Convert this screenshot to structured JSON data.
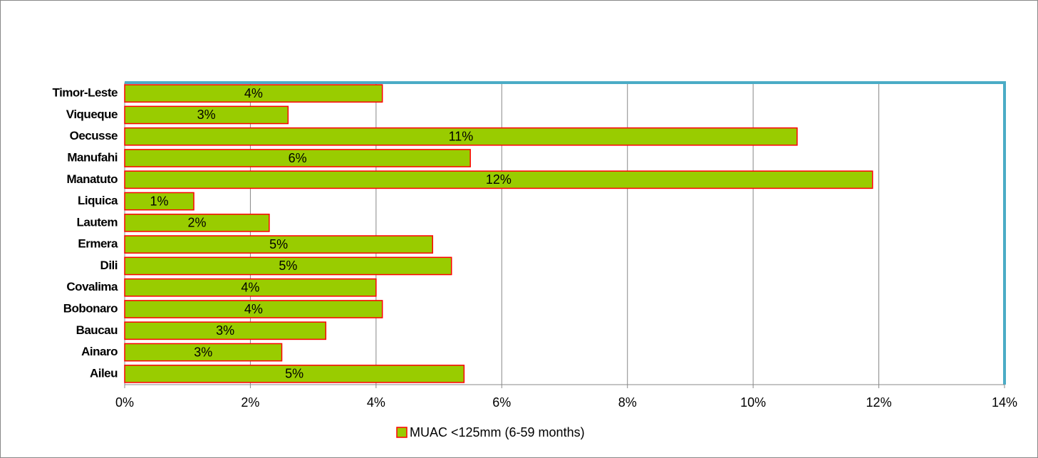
{
  "chart_data": {
    "type": "barh",
    "categories": [
      "Timor-Leste",
      "Viqueque",
      "Oecusse",
      "Manufahi",
      "Manatuto",
      "Liquica",
      "Lautem",
      "Ermera",
      "Dili",
      "Covalima",
      "Bobonaro",
      "Baucau",
      "Ainaro",
      "Aileu"
    ],
    "series": [
      {
        "name": "MUAC <125mm (6-59 months)",
        "color": "#99cc00",
        "border_color": "#ff0000",
        "values": [
          4.1,
          2.6,
          10.7,
          5.5,
          11.9,
          1.1,
          2.3,
          4.9,
          5.2,
          4.0,
          4.1,
          3.2,
          2.5,
          5.4
        ],
        "value_labels": [
          "4%",
          "3%",
          "11%",
          "6%",
          "12%",
          "1%",
          "2%",
          "5%",
          "5%",
          "4%",
          "4%",
          "3%",
          "3%",
          "5%"
        ]
      }
    ],
    "xlim": [
      0,
      14
    ],
    "xticks": [
      {
        "value": 0,
        "label": "0%"
      },
      {
        "value": 2,
        "label": "2%"
      },
      {
        "value": 4,
        "label": "4%"
      },
      {
        "value": 6,
        "label": "6%"
      },
      {
        "value": 8,
        "label": "8%"
      },
      {
        "value": 10,
        "label": "10%"
      },
      {
        "value": 12,
        "label": "12%"
      },
      {
        "value": 14,
        "label": "14%"
      }
    ],
    "grid": true,
    "legend": "bottom"
  }
}
